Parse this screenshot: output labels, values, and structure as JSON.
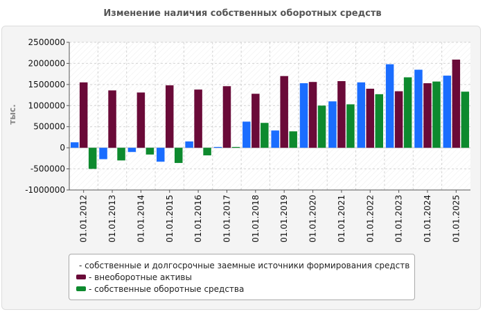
{
  "colors": {
    "series1": "#1a6dff",
    "series2": "#6a0a38",
    "series3": "#0d8a2e",
    "grid": "#d2d2d2",
    "axis": "#555555",
    "zero_line": "#c0c0c0"
  },
  "chart_data": {
    "type": "bar",
    "title": "Изменение наличия собственных оборотных средств",
    "xlabel": "",
    "ylabel": "тыс.",
    "ylim": [
      -1000000,
      2500000
    ],
    "yticks": [
      2500000,
      2000000,
      1500000,
      1000000,
      500000,
      0,
      -500000,
      -1000000
    ],
    "ytick_labels": [
      "2500000",
      "2000000",
      "1500000",
      "1000000",
      "500000",
      "0",
      "-500000",
      "-1000000"
    ],
    "grid": true,
    "legend_position": "bottom",
    "categories": [
      "01.01.2012",
      "01.01.2013",
      "01.01.2014",
      "01.01.2015",
      "01.01.2016",
      "01.01.2017",
      "01.01.2018",
      "01.01.2019",
      "01.01.2020",
      "01.01.2021",
      "01.01.2022",
      "01.01.2023",
      "01.01.2024",
      "01.01.2025"
    ],
    "series": [
      {
        "name": "- собственные и долгосрочные заемные источники формирования средств",
        "color": "#1a6dff",
        "values": [
          130000,
          -270000,
          -100000,
          -330000,
          150000,
          20000,
          620000,
          410000,
          1530000,
          1100000,
          1550000,
          1980000,
          1850000,
          1710000
        ]
      },
      {
        "name": "- внеоборотные активы",
        "color": "#6a0a38",
        "values": [
          1550000,
          1360000,
          1310000,
          1480000,
          1380000,
          1460000,
          1280000,
          1700000,
          1560000,
          1580000,
          1400000,
          1340000,
          1530000,
          2090000
        ]
      },
      {
        "name": "- собственные оборотные средства",
        "color": "#0d8a2e",
        "values": [
          -500000,
          -300000,
          -160000,
          -360000,
          -180000,
          20000,
          590000,
          390000,
          1000000,
          1030000,
          1270000,
          1670000,
          1570000,
          1330000
        ]
      }
    ]
  }
}
